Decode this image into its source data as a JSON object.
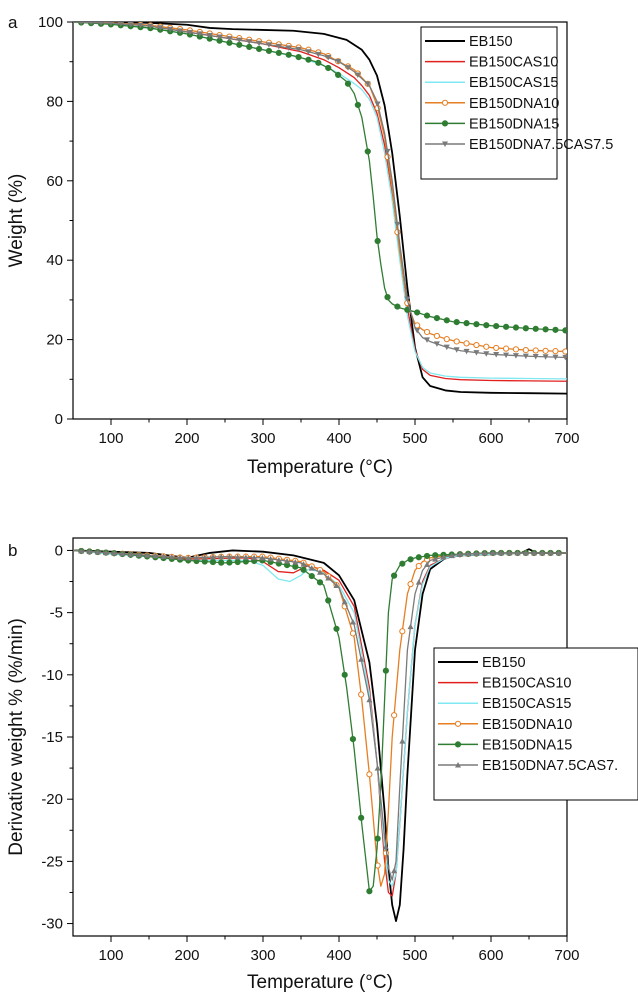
{
  "chart_data": [
    {
      "panel": "a",
      "type": "line",
      "title": "",
      "xlabel": "Temperature (°C)",
      "ylabel": "Weight (%)",
      "xlim": [
        50,
        700
      ],
      "ylim": [
        0,
        100
      ],
      "xticks": [
        100,
        200,
        300,
        400,
        500,
        600,
        700
      ],
      "yticks": [
        0,
        20,
        40,
        60,
        80,
        100
      ],
      "grid": false,
      "legend_position": "top-right",
      "series": [
        {
          "name": "EB150",
          "color": "#000000",
          "marker": "none",
          "x": [
            50,
            100,
            150,
            200,
            230,
            260,
            300,
            340,
            380,
            410,
            430,
            440,
            450,
            460,
            470,
            480,
            490,
            500,
            510,
            520,
            540,
            560,
            600,
            650,
            700
          ],
          "y": [
            100,
            100,
            99.8,
            99.3,
            98.5,
            98.2,
            98,
            97.8,
            97,
            95.5,
            93,
            90.5,
            86.5,
            79,
            67,
            51,
            33,
            18,
            10.5,
            8.3,
            7.2,
            6.8,
            6.6,
            6.5,
            6.4
          ]
        },
        {
          "name": "EB150CAS10",
          "color": "#e0201f",
          "marker": "none",
          "x": [
            50,
            100,
            150,
            200,
            250,
            300,
            350,
            380,
            400,
            420,
            430,
            440,
            450,
            460,
            470,
            480,
            490,
            500,
            510,
            520,
            540,
            560,
            600,
            650,
            700
          ],
          "y": [
            100,
            99.8,
            99,
            97.5,
            96,
            94.5,
            92.5,
            90.5,
            88.5,
            86,
            84,
            81.5,
            77,
            69,
            57,
            42,
            28,
            17.5,
            12.5,
            11,
            10.2,
            9.9,
            9.7,
            9.6,
            9.5
          ]
        },
        {
          "name": "EB150CAS15",
          "color": "#7fe8f0",
          "marker": "none",
          "x": [
            50,
            100,
            150,
            200,
            250,
            300,
            350,
            380,
            400,
            420,
            430,
            440,
            450,
            460,
            470,
            480,
            490,
            500,
            510,
            520,
            540,
            560,
            600,
            650,
            700
          ],
          "y": [
            100,
            99.5,
            98.5,
            97,
            95,
            93,
            91,
            89,
            87,
            84.5,
            83,
            80.5,
            76,
            67,
            55,
            40,
            26,
            17,
            13,
            11.6,
            10.8,
            10.5,
            10.3,
            10.2,
            10.1
          ]
        },
        {
          "name": "EB150DNA10",
          "color": "#e67e22",
          "marker": "circle-open",
          "x": [
            50,
            100,
            150,
            200,
            250,
            300,
            350,
            380,
            400,
            420,
            440,
            450,
            460,
            470,
            480,
            490,
            500,
            510,
            520,
            540,
            560,
            600,
            650,
            700
          ],
          "y": [
            100,
            99.8,
            99.2,
            98,
            96.5,
            95,
            93.5,
            92,
            90,
            88,
            84,
            79,
            71,
            58,
            42,
            29,
            24,
            22.5,
            21.5,
            20.2,
            19.3,
            18,
            17.3,
            17
          ]
        },
        {
          "name": "EB150DNA15",
          "color": "#2f7d32",
          "marker": "circle-filled",
          "x": [
            50,
            100,
            150,
            200,
            250,
            300,
            340,
            370,
            390,
            410,
            420,
            430,
            440,
            445,
            450,
            455,
            460,
            465,
            470,
            480,
            490,
            500,
            520,
            550,
            600,
            650,
            700
          ],
          "y": [
            100,
            99.4,
            98.5,
            97,
            95,
            93,
            91.5,
            90,
            88,
            85,
            82,
            76,
            65,
            56,
            46,
            39,
            33,
            30,
            29,
            28,
            27.5,
            27,
            25.8,
            24.5,
            23.5,
            22.8,
            22.3
          ]
        },
        {
          "name": "EB150DNA7.5CAS7.5",
          "color": "#7a7a7a",
          "marker": "triangle-down",
          "x": [
            50,
            100,
            150,
            200,
            250,
            300,
            350,
            380,
            400,
            420,
            440,
            450,
            460,
            470,
            480,
            490,
            500,
            510,
            520,
            540,
            560,
            600,
            650,
            700
          ],
          "y": [
            100,
            99.7,
            99,
            97.5,
            96,
            94.5,
            93,
            91.5,
            90,
            87.5,
            84,
            80,
            72,
            60,
            44,
            30,
            23,
            20.5,
            19.5,
            18.2,
            17.2,
            16.3,
            15.8,
            15.5
          ]
        }
      ]
    },
    {
      "panel": "b",
      "type": "line",
      "title": "",
      "xlabel": "Temperature (°C)",
      "ylabel": "Derivative weight % (%/min)",
      "xlim": [
        50,
        700
      ],
      "ylim": [
        -31,
        1
      ],
      "xticks": [
        100,
        200,
        300,
        400,
        500,
        600,
        700
      ],
      "yticks": [
        0,
        -5,
        -10,
        -15,
        -20,
        -25,
        -30
      ],
      "grid": false,
      "legend_position": "right",
      "legend_entries": [
        "EB150",
        "EB150CAS10",
        "EB150CAS15",
        "EB150DNA10",
        "EB150DNA15",
        "EB150DNA7.5CAS7."
      ],
      "series": [
        {
          "name": "EB150",
          "color": "#000000",
          "marker": "none",
          "x": [
            50,
            100,
            150,
            200,
            230,
            260,
            300,
            340,
            380,
            400,
            420,
            440,
            450,
            460,
            465,
            470,
            475,
            480,
            485,
            490,
            500,
            510,
            520,
            540,
            560,
            600,
            640,
            650,
            660,
            700
          ],
          "y": [
            0,
            -0.1,
            -0.2,
            -0.6,
            -0.2,
            0,
            -0.1,
            -0.4,
            -1,
            -2,
            -4,
            -9,
            -14,
            -21,
            -25.5,
            -28.5,
            -29.8,
            -28.5,
            -24,
            -18,
            -8,
            -3.5,
            -1.5,
            -0.6,
            -0.4,
            -0.3,
            -0.2,
            0.1,
            -0.2,
            -0.2
          ]
        },
        {
          "name": "EB150CAS10",
          "color": "#e0201f",
          "marker": "none",
          "x": [
            50,
            100,
            150,
            200,
            280,
            300,
            320,
            340,
            350,
            360,
            380,
            400,
            420,
            440,
            450,
            455,
            460,
            465,
            470,
            475,
            480,
            490,
            500,
            510,
            520,
            540,
            560,
            600,
            650,
            700
          ],
          "y": [
            0,
            -0.2,
            -0.4,
            -0.7,
            -0.6,
            -0.9,
            -1.7,
            -1.8,
            -1.5,
            -1.2,
            -1.6,
            -2.4,
            -4.5,
            -11,
            -17,
            -21,
            -25,
            -27.5,
            -27.8,
            -26,
            -22,
            -13,
            -6,
            -2.5,
            -1.2,
            -0.6,
            -0.4,
            -0.3,
            -0.2,
            -0.2
          ]
        },
        {
          "name": "EB150CAS15",
          "color": "#7fe8f0",
          "marker": "none",
          "x": [
            50,
            100,
            150,
            200,
            280,
            300,
            320,
            335,
            350,
            360,
            380,
            400,
            420,
            440,
            450,
            460,
            465,
            470,
            475,
            480,
            490,
            500,
            510,
            520,
            540,
            560,
            600,
            650,
            700
          ],
          "y": [
            0,
            -0.3,
            -0.5,
            -0.8,
            -0.8,
            -1.2,
            -2.3,
            -2.5,
            -2,
            -1.5,
            -1.8,
            -2.8,
            -5,
            -11.5,
            -17,
            -24,
            -26.5,
            -27,
            -26,
            -22,
            -13,
            -6,
            -2.7,
            -1.3,
            -0.6,
            -0.4,
            -0.3,
            -0.2,
            -0.2
          ]
        },
        {
          "name": "EB150DNA10",
          "color": "#e67e22",
          "marker": "circle-open",
          "x": [
            50,
            100,
            150,
            200,
            250,
            300,
            350,
            380,
            400,
            420,
            430,
            440,
            450,
            455,
            460,
            465,
            470,
            480,
            490,
            500,
            510,
            520,
            540,
            560,
            600,
            650,
            700
          ],
          "y": [
            0,
            -0.2,
            -0.4,
            -0.6,
            -0.5,
            -0.5,
            -0.9,
            -1.7,
            -3,
            -7,
            -12,
            -18,
            -25,
            -27,
            -26,
            -21,
            -15,
            -8,
            -3.5,
            -1.6,
            -0.9,
            -0.6,
            -0.4,
            -0.3,
            -0.2,
            -0.2,
            -0.2
          ]
        },
        {
          "name": "EB150DNA15",
          "color": "#2f7d32",
          "marker": "circle-filled",
          "x": [
            50,
            100,
            150,
            200,
            250,
            300,
            350,
            380,
            400,
            410,
            420,
            430,
            440,
            445,
            450,
            455,
            460,
            465,
            470,
            480,
            490,
            500,
            520,
            560,
            600,
            650,
            700
          ],
          "y": [
            0,
            -0.2,
            -0.5,
            -0.8,
            -1,
            -0.8,
            -1.4,
            -2.8,
            -7,
            -11,
            -16,
            -22,
            -27.4,
            -27,
            -24,
            -19,
            -12,
            -5,
            -2.3,
            -1.2,
            -0.8,
            -0.6,
            -0.4,
            -0.3,
            -0.2,
            -0.2,
            -0.2
          ]
        },
        {
          "name": "EB150DNA7.5CAS7.5",
          "color": "#7a7a7a",
          "marker": "triangle-up",
          "x": [
            50,
            100,
            150,
            200,
            250,
            300,
            350,
            380,
            400,
            420,
            440,
            450,
            460,
            465,
            470,
            475,
            480,
            490,
            500,
            510,
            520,
            540,
            560,
            600,
            650,
            700
          ],
          "y": [
            0,
            -0.2,
            -0.4,
            -0.6,
            -0.5,
            -0.6,
            -1,
            -1.9,
            -3,
            -6,
            -12,
            -17,
            -23,
            -25.5,
            -26.5,
            -25,
            -19,
            -8,
            -3.5,
            -1.6,
            -0.8,
            -0.5,
            -0.3,
            -0.2,
            -0.2,
            -0.2
          ]
        }
      ]
    }
  ]
}
